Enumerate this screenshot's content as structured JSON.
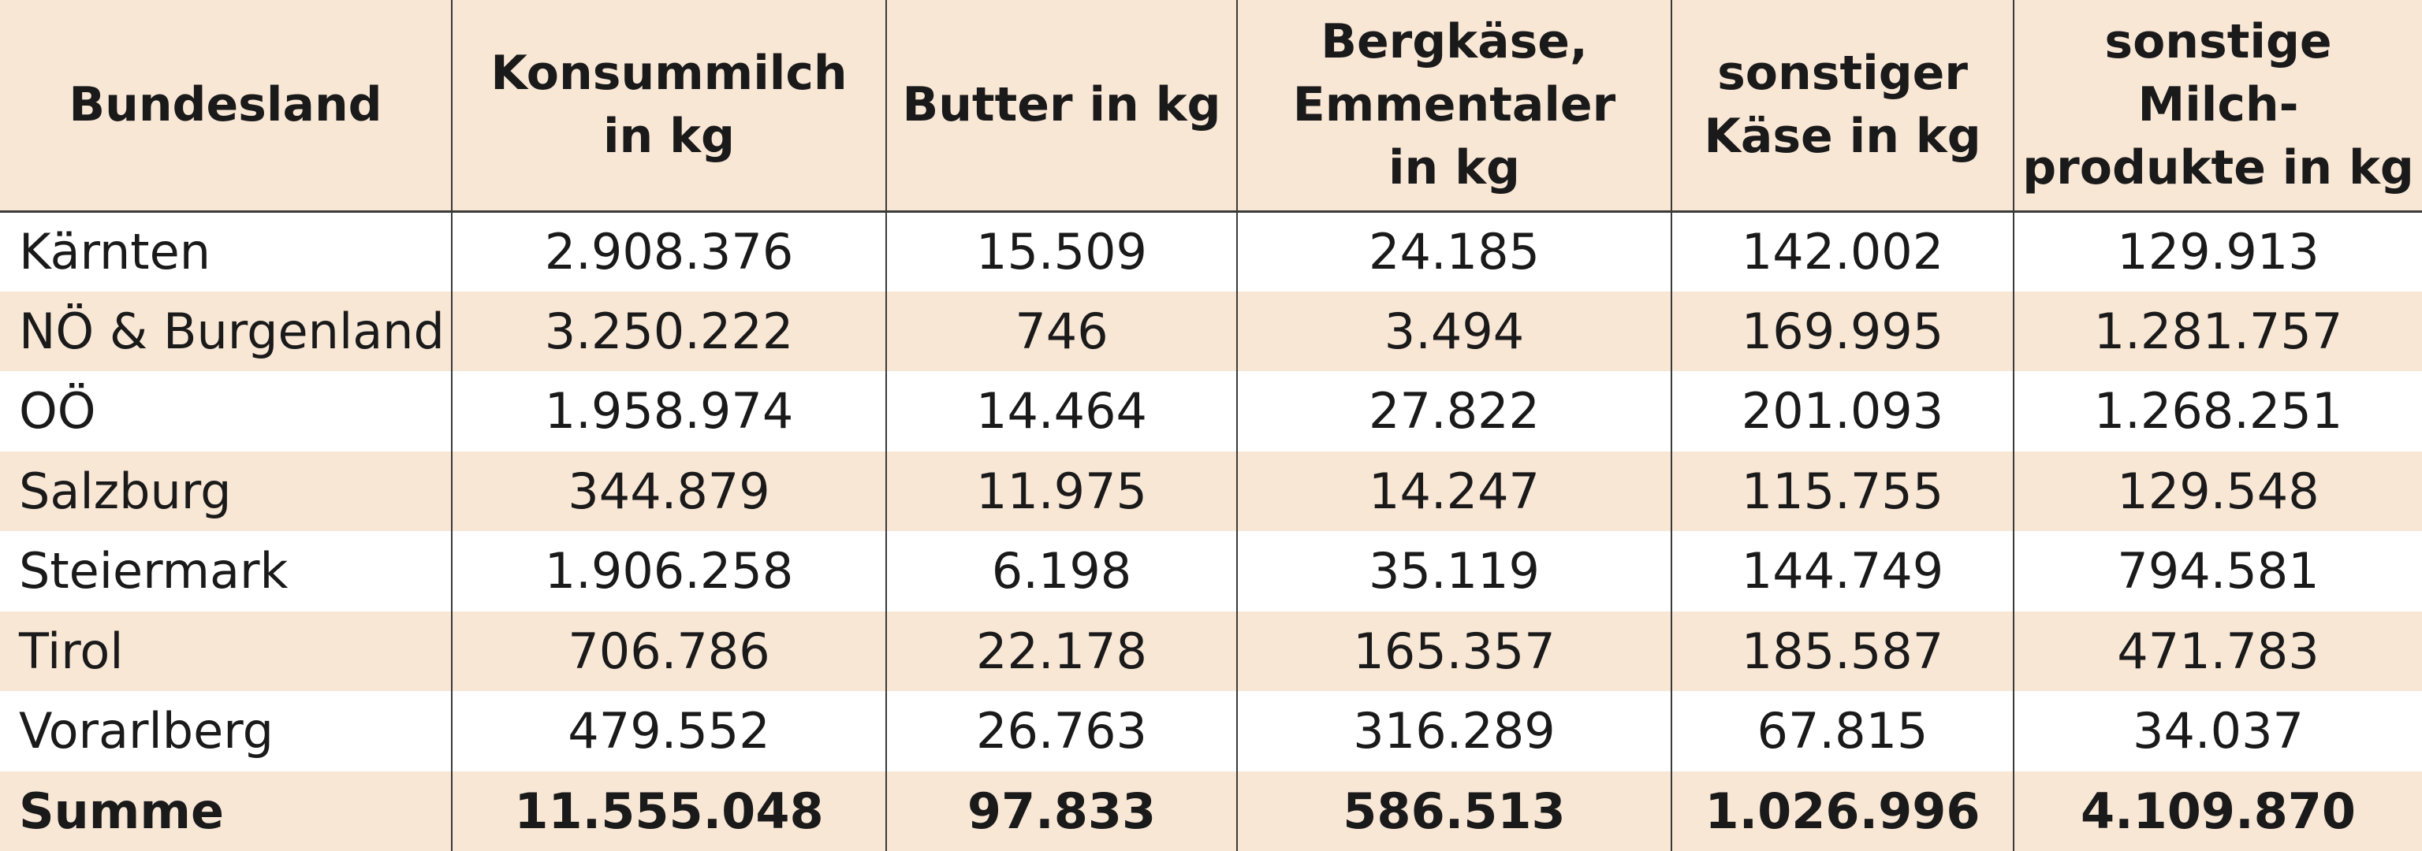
{
  "table": {
    "headers": [
      "Bundesland",
      "Konsummilch\nin kg",
      "Butter in kg",
      "Bergkäse,\nEmmentaler\nin kg",
      "sonstiger\nKäse in kg",
      "sonstige Milch-\nprodukte in kg"
    ],
    "rows": [
      [
        "Kärnten",
        "2.908.376",
        "15.509",
        "24.185",
        "142.002",
        "129.913"
      ],
      [
        "NÖ & Burgenland",
        "3.250.222",
        "746",
        "3.494",
        "169.995",
        "1.281.757"
      ],
      [
        "OÖ",
        "1.958.974",
        "14.464",
        "27.822",
        "201.093",
        "1.268.251"
      ],
      [
        "Salzburg",
        "344.879",
        "11.975",
        "14.247",
        "115.755",
        "129.548"
      ],
      [
        "Steiermark",
        "1.906.258",
        "6.198",
        "35.119",
        "144.749",
        "794.581"
      ],
      [
        "Tirol",
        "706.786",
        "22.178",
        "165.357",
        "185.587",
        "471.783"
      ],
      [
        "Vorarlberg",
        "479.552",
        "26.763",
        "316.289",
        "67.815",
        "34.037"
      ],
      [
        "Summe",
        "11.555.048",
        "97.833",
        "586.513",
        "1.026.996",
        "4.109.870"
      ]
    ]
  },
  "colors": {
    "header_bg": "#f9e7d6",
    "stripe_bg": "#f9e7d6",
    "border": "#3a3a3a",
    "text": "#1a1a1a"
  }
}
